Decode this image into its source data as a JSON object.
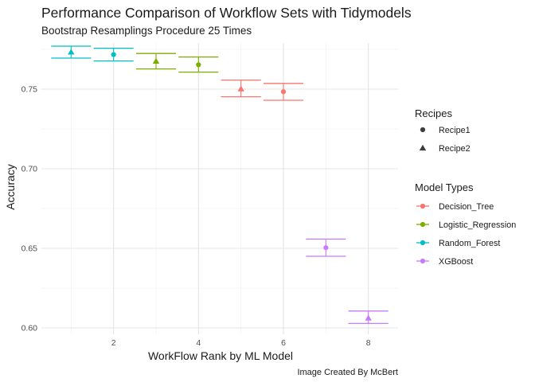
{
  "chart_data": {
    "type": "scatter",
    "title": "Performance Comparison of Workflow Sets with Tidymodels",
    "subtitle": "Bootstrap Resamplings Procedure 25 Times",
    "xlabel": "WorkFlow Rank by ML Model",
    "ylabel": "Accuracy",
    "caption": "Image Created By McBert",
    "xlim": [
      0.3,
      8.7
    ],
    "ylim": [
      0.596,
      0.779
    ],
    "x_ticks": [
      2,
      4,
      6,
      8
    ],
    "y_ticks": [
      0.6,
      0.65,
      0.7,
      0.75
    ],
    "y_tick_labels": [
      "0.60",
      "0.65",
      "0.70",
      "0.75"
    ],
    "grid": true,
    "legend_position": "right",
    "legends": {
      "recipes": {
        "title": "Recipes",
        "entries": [
          {
            "label": "Recipe1",
            "shape": "circle"
          },
          {
            "label": "Recipe2",
            "shape": "triangle"
          }
        ]
      },
      "models": {
        "title": "Model Types",
        "entries": [
          {
            "label": "Decision_Tree",
            "color": "#F8766D"
          },
          {
            "label": "Logistic_Regression",
            "color": "#7CAE00"
          },
          {
            "label": "Random_Forest",
            "color": "#00BFC4"
          },
          {
            "label": "XGBoost",
            "color": "#C77CFF"
          }
        ]
      }
    },
    "points": [
      {
        "rank": 1,
        "model": "Random_Forest",
        "recipe": "Recipe2",
        "mean": 0.7733,
        "lower": 0.7695,
        "upper": 0.777
      },
      {
        "rank": 2,
        "model": "Random_Forest",
        "recipe": "Recipe1",
        "mean": 0.7717,
        "lower": 0.7677,
        "upper": 0.7757
      },
      {
        "rank": 3,
        "model": "Logistic_Regression",
        "recipe": "Recipe2",
        "mean": 0.7676,
        "lower": 0.7627,
        "upper": 0.7724
      },
      {
        "rank": 4,
        "model": "Logistic_Regression",
        "recipe": "Recipe1",
        "mean": 0.7653,
        "lower": 0.7607,
        "upper": 0.7702
      },
      {
        "rank": 5,
        "model": "Decision_Tree",
        "recipe": "Recipe2",
        "mean": 0.7502,
        "lower": 0.7452,
        "upper": 0.7557
      },
      {
        "rank": 6,
        "model": "Decision_Tree",
        "recipe": "Recipe1",
        "mean": 0.7484,
        "lower": 0.743,
        "upper": 0.7536
      },
      {
        "rank": 7,
        "model": "XGBoost",
        "recipe": "Recipe1",
        "mean": 0.6504,
        "lower": 0.645,
        "upper": 0.6558
      },
      {
        "rank": 8,
        "model": "XGBoost",
        "recipe": "Recipe2",
        "mean": 0.6062,
        "lower": 0.6028,
        "upper": 0.6106
      }
    ]
  }
}
